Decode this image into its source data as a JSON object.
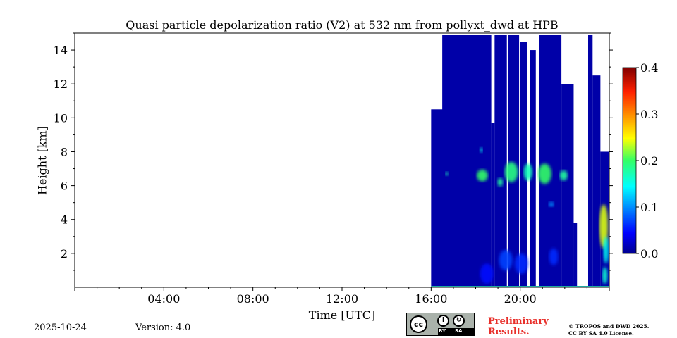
{
  "chart_data": {
    "type": "heatmap",
    "title": "Quasi particle depolarization ratio (V2) at 532 nm from pollyxt_dwd at HPB",
    "xlabel": "Time [UTC]",
    "ylabel": "Height [km]",
    "x_range_hours": [
      0,
      24
    ],
    "x_ticks": [
      "04:00",
      "08:00",
      "12:00",
      "16:00",
      "20:00"
    ],
    "ylim": [
      0,
      15
    ],
    "y_ticks": [
      "2",
      "4",
      "6",
      "8",
      "10",
      "12",
      "14"
    ],
    "colorbar": {
      "range": [
        0.0,
        0.4
      ],
      "ticks": [
        "0.0",
        "0.1",
        "0.2",
        "0.3",
        "0.4"
      ],
      "colormap": "jet"
    },
    "background_value": 0.01,
    "data_columns": [
      {
        "t0": 16.0,
        "t1": 17.5,
        "top": 10.5
      },
      {
        "t0": 16.5,
        "t1": 18.7,
        "top": 14.9
      },
      {
        "t0": 18.7,
        "t1": 18.85,
        "top": 9.7
      },
      {
        "t0": 18.85,
        "t1": 19.4,
        "top": 14.9
      },
      {
        "t0": 19.45,
        "t1": 19.95,
        "top": 14.9
      },
      {
        "t0": 20.0,
        "t1": 20.3,
        "top": 14.5
      },
      {
        "t0": 20.45,
        "t1": 20.7,
        "top": 14.0
      },
      {
        "t0": 20.85,
        "t1": 21.85,
        "top": 14.9
      },
      {
        "t0": 21.85,
        "t1": 22.4,
        "top": 12.0
      },
      {
        "t0": 22.4,
        "t1": 22.55,
        "top": 3.8
      },
      {
        "t0": 23.05,
        "t1": 23.25,
        "top": 14.9
      },
      {
        "t0": 23.25,
        "t1": 23.6,
        "top": 12.5
      },
      {
        "t0": 23.6,
        "t1": 24.0,
        "top": 8.0
      }
    ],
    "features": [
      {
        "t": 18.3,
        "h": 6.6,
        "dt": 0.25,
        "dh": 0.35,
        "value": 0.2
      },
      {
        "t": 16.7,
        "h": 6.7,
        "dt": 0.06,
        "dh": 0.12,
        "value": 0.17
      },
      {
        "t": 19.1,
        "h": 6.2,
        "dt": 0.12,
        "dh": 0.25,
        "value": 0.18
      },
      {
        "t": 19.6,
        "h": 6.8,
        "dt": 0.3,
        "dh": 0.6,
        "value": 0.19
      },
      {
        "t": 20.35,
        "h": 6.8,
        "dt": 0.2,
        "dh": 0.5,
        "value": 0.17
      },
      {
        "t": 21.1,
        "h": 6.7,
        "dt": 0.3,
        "dh": 0.6,
        "value": 0.2
      },
      {
        "t": 21.95,
        "h": 6.6,
        "dt": 0.18,
        "dh": 0.3,
        "value": 0.18
      },
      {
        "t": 18.25,
        "h": 8.1,
        "dt": 0.05,
        "dh": 0.15,
        "value": 0.15
      },
      {
        "t": 21.4,
        "h": 4.9,
        "dt": 0.12,
        "dh": 0.15,
        "value": 0.1
      },
      {
        "t": 23.75,
        "h": 3.6,
        "dt": 0.2,
        "dh": 1.3,
        "value": 0.24
      },
      {
        "t": 23.85,
        "h": 2.2,
        "dt": 0.12,
        "dh": 0.8,
        "value": 0.15
      },
      {
        "t": 23.8,
        "h": 0.7,
        "dt": 0.12,
        "dh": 0.5,
        "value": 0.16
      },
      {
        "t": 19.35,
        "h": 1.6,
        "dt": 0.3,
        "dh": 0.6,
        "value": 0.07
      },
      {
        "t": 20.05,
        "h": 1.4,
        "dt": 0.3,
        "dh": 0.6,
        "value": 0.06
      },
      {
        "t": 21.5,
        "h": 1.8,
        "dt": 0.2,
        "dh": 0.5,
        "value": 0.06
      },
      {
        "t": 18.5,
        "h": 0.8,
        "dt": 0.3,
        "dh": 0.6,
        "value": 0.05
      }
    ]
  },
  "footer": {
    "date": "2025-10-24",
    "version": "Version: 4.0",
    "license_badge": {
      "by": "BY",
      "sa": "SA",
      "cc": "cc",
      "icon_name": "creative-commons-by-sa-icon"
    },
    "preliminary_line1": "Preliminary",
    "preliminary_line2": "Results.",
    "copyright_line1": "© TROPOS and DWD 2025.",
    "copyright_line2": "CC BY SA 4.0 License."
  },
  "colors": {
    "preliminary": "#e8302b",
    "background_cloud": "#0a50d8"
  }
}
